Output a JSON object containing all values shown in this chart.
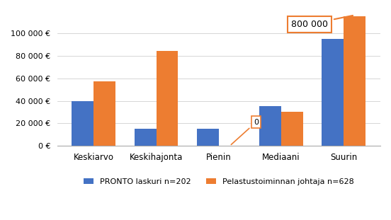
{
  "categories": [
    "Keskiarvo",
    "Keskihajonta",
    "Pienin",
    "Mediaani",
    "Suurin"
  ],
  "series": [
    {
      "name": "PRONTO laskuri n=202",
      "color": "#4472C4",
      "values": [
        40000,
        15000,
        15000,
        35000,
        95000
      ]
    },
    {
      "name": "Pelastustoiminnan johtaja n=628",
      "color": "#ED7D31",
      "values": [
        57000,
        84000,
        0,
        30000,
        115000
      ]
    }
  ],
  "ylim": [
    0,
    120000
  ],
  "yticks": [
    0,
    20000,
    40000,
    60000,
    80000,
    100000
  ],
  "ytick_labels": [
    "0 €",
    "20 000 €",
    "40 000 €",
    "60 000 €",
    "80 000 €",
    "100 000 €"
  ],
  "annotation_zero": {
    "category_idx": 2,
    "series_idx": 1,
    "text": "0"
  },
  "annotation_800k": {
    "category_idx": 4,
    "series_idx": 1,
    "text": "800 000"
  },
  "background_color": "#FFFFFF",
  "bar_width": 0.35
}
